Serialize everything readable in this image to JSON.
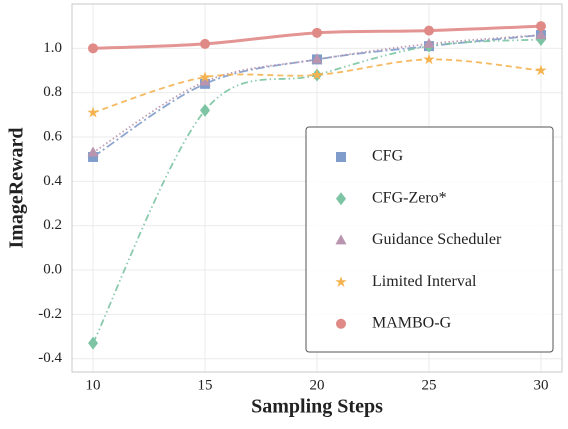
{
  "chart_data": {
    "type": "line",
    "x_label": "Sampling Steps",
    "y_label": "ImageReward",
    "x": [
      10,
      15,
      20,
      25,
      30
    ],
    "xlim": [
      9.06,
      30.94
    ],
    "xticks": [
      10,
      15,
      20,
      25,
      30
    ],
    "ylim": [
      -0.46,
      1.2
    ],
    "yticks": [
      -0.4,
      -0.2,
      {
        "value": 0,
        "label": "0.0"
      },
      0.2,
      0.4,
      0.6,
      0.8,
      {
        "value": 1,
        "label": "1.0"
      }
    ],
    "grid": true,
    "legend": "lower right",
    "series": [
      {
        "name": "CFG",
        "color": "#7f9ccb",
        "marker": "square",
        "linestyle": "dashdot",
        "values": [
          0.51,
          0.84,
          0.95,
          1.01,
          1.06
        ]
      },
      {
        "name": "CFG-Zero*",
        "color": "#7cc4a3",
        "marker": "diamond",
        "linestyle": "dashdotdot",
        "values": [
          -0.33,
          0.72,
          0.88,
          1.01,
          1.04
        ]
      },
      {
        "name": "Guidance Scheduler",
        "color": "#b894ae",
        "marker": "triangle",
        "linestyle": "dotted",
        "values": [
          0.53,
          0.85,
          0.95,
          1.02,
          1.06
        ]
      },
      {
        "name": "Limited Interval",
        "color": "#f4b350",
        "marker": "star",
        "linestyle": "dashed",
        "values": [
          0.71,
          0.87,
          0.88,
          0.95,
          0.9
        ]
      },
      {
        "name": "MAMBO-G",
        "color": "#e08a87",
        "marker": "circle",
        "linestyle": "solid",
        "values": [
          1.0,
          1.02,
          1.07,
          1.08,
          1.1
        ]
      }
    ]
  }
}
